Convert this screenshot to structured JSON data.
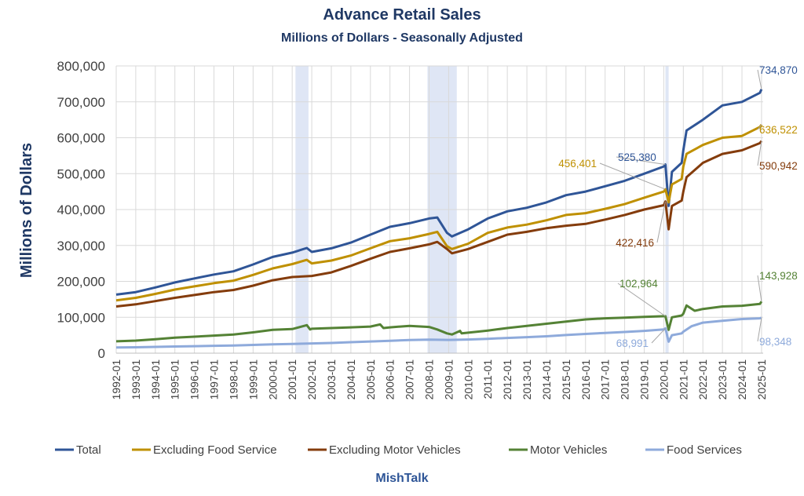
{
  "chart_data": {
    "type": "line",
    "title": "Advance Retail Sales",
    "subtitle": "Millions of Dollars - Seasonally Adjusted",
    "ylabel": "Millions of Dollars",
    "xlabel": "",
    "ylim": [
      0,
      800000
    ],
    "yticks": [
      "0",
      "100,000",
      "200,000",
      "300,000",
      "400,000",
      "500,000",
      "600,000",
      "700,000",
      "800,000"
    ],
    "x_ticks": [
      "1992-01",
      "1993-01",
      "1994-01",
      "1995-01",
      "1996-01",
      "1997-01",
      "1998-01",
      "1999-01",
      "2000-01",
      "2001-01",
      "2002-01",
      "2003-01",
      "2004-01",
      "2005-01",
      "2006-01",
      "2007-01",
      "2008-01",
      "2009-01",
      "2010-01",
      "2011-01",
      "2012-01",
      "2013-01",
      "2014-01",
      "2015-01",
      "2016-01",
      "2017-01",
      "2018-01",
      "2019-01",
      "2020-01",
      "2021-01",
      "2022-01",
      "2023-01",
      "2024-01",
      "2025-01"
    ],
    "grid": true,
    "legend_position": "bottom",
    "recessions": [
      {
        "start": "2001-03",
        "end": "2001-11"
      },
      {
        "start": "2007-12",
        "end": "2009-06"
      },
      {
        "start": "2020-02",
        "end": "2020-04"
      }
    ],
    "series": [
      {
        "name": "Total",
        "color": "#2f5597",
        "x": [
          "1992-01",
          "1993-01",
          "1994-01",
          "1995-01",
          "1996-01",
          "1997-01",
          "1998-01",
          "1999-01",
          "2000-01",
          "2001-01",
          "2001-10",
          "2002-01",
          "2003-01",
          "2004-01",
          "2005-01",
          "2006-01",
          "2007-01",
          "2008-01",
          "2008-06",
          "2008-12",
          "2009-03",
          "2010-01",
          "2011-01",
          "2012-01",
          "2013-01",
          "2014-01",
          "2015-01",
          "2016-01",
          "2017-01",
          "2018-01",
          "2019-01",
          "2020-01",
          "2020-02",
          "2020-04",
          "2020-06",
          "2020-12",
          "2021-01",
          "2021-03",
          "2022-01",
          "2023-01",
          "2024-01",
          "2024-12",
          "2025-01"
        ],
        "values": [
          163000,
          170000,
          183000,
          197000,
          208000,
          219000,
          228000,
          247000,
          268000,
          280000,
          293000,
          282000,
          292000,
          308000,
          330000,
          352000,
          362000,
          375000,
          378000,
          335000,
          325000,
          345000,
          375000,
          395000,
          405000,
          420000,
          440000,
          450000,
          465000,
          480000,
          500000,
          520000,
          525380,
          410000,
          505000,
          530000,
          565000,
          620000,
          650000,
          690000,
          700000,
          725000,
          734870
        ]
      },
      {
        "name": "Excluding Food Service",
        "color": "#bf9000",
        "x": [
          "1992-01",
          "1993-01",
          "1994-01",
          "1995-01",
          "1996-01",
          "1997-01",
          "1998-01",
          "1999-01",
          "2000-01",
          "2001-01",
          "2001-10",
          "2002-01",
          "2003-01",
          "2004-01",
          "2005-01",
          "2006-01",
          "2007-01",
          "2008-01",
          "2008-06",
          "2008-12",
          "2009-03",
          "2010-01",
          "2011-01",
          "2012-01",
          "2013-01",
          "2014-01",
          "2015-01",
          "2016-01",
          "2017-01",
          "2018-01",
          "2019-01",
          "2020-01",
          "2020-02",
          "2020-04",
          "2020-06",
          "2020-12",
          "2021-01",
          "2021-03",
          "2022-01",
          "2023-01",
          "2024-01",
          "2024-12",
          "2025-01"
        ],
        "values": [
          147000,
          154000,
          165000,
          177000,
          186000,
          195000,
          202000,
          218000,
          236000,
          248000,
          260000,
          250000,
          258000,
          272000,
          292000,
          312000,
          320000,
          332000,
          338000,
          298000,
          290000,
          305000,
          335000,
          350000,
          358000,
          370000,
          385000,
          390000,
          402000,
          415000,
          433000,
          450000,
          456401,
          420000,
          470000,
          485000,
          520000,
          555000,
          580000,
          600000,
          605000,
          630000,
          636522
        ]
      },
      {
        "name": "Excluding Motor Vehicles",
        "color": "#843c0c",
        "x": [
          "1992-01",
          "1993-01",
          "1994-01",
          "1995-01",
          "1996-01",
          "1997-01",
          "1998-01",
          "1999-01",
          "2000-01",
          "2001-01",
          "2002-01",
          "2003-01",
          "2004-01",
          "2005-01",
          "2006-01",
          "2007-01",
          "2008-01",
          "2008-06",
          "2008-12",
          "2009-03",
          "2010-01",
          "2011-01",
          "2012-01",
          "2013-01",
          "2014-01",
          "2015-01",
          "2016-01",
          "2017-01",
          "2018-01",
          "2019-01",
          "2020-01",
          "2020-02",
          "2020-04",
          "2020-06",
          "2020-12",
          "2021-01",
          "2021-03",
          "2022-01",
          "2023-01",
          "2024-01",
          "2024-12",
          "2025-01"
        ],
        "values": [
          130000,
          136000,
          145000,
          154000,
          162000,
          170000,
          176000,
          188000,
          203000,
          212000,
          215000,
          225000,
          243000,
          263000,
          282000,
          292000,
          303000,
          310000,
          290000,
          278000,
          290000,
          310000,
          330000,
          338000,
          348000,
          355000,
          360000,
          372000,
          385000,
          400000,
          412000,
          422416,
          345000,
          410000,
          425000,
          450000,
          490000,
          530000,
          555000,
          565000,
          585000,
          590942
        ]
      },
      {
        "name": "Motor Vehicles",
        "color": "#548235",
        "x": [
          "1992-01",
          "1993-01",
          "1994-01",
          "1995-01",
          "1996-01",
          "1997-01",
          "1998-01",
          "1999-01",
          "2000-01",
          "2001-01",
          "2001-10",
          "2001-12",
          "2002-01",
          "2003-01",
          "2004-01",
          "2005-01",
          "2005-07",
          "2005-09",
          "2006-01",
          "2007-01",
          "2008-01",
          "2008-06",
          "2008-12",
          "2009-03",
          "2009-08",
          "2009-09",
          "2010-01",
          "2011-01",
          "2012-01",
          "2013-01",
          "2014-01",
          "2015-01",
          "2016-01",
          "2017-01",
          "2018-01",
          "2019-01",
          "2020-01",
          "2020-02",
          "2020-04",
          "2020-06",
          "2020-12",
          "2021-01",
          "2021-03",
          "2021-08",
          "2022-01",
          "2023-01",
          "2024-01",
          "2024-12",
          "2025-01"
        ],
        "values": [
          33000,
          35000,
          39000,
          43000,
          46000,
          49000,
          52000,
          58000,
          65000,
          67000,
          78000,
          66000,
          68000,
          70000,
          72000,
          74000,
          80000,
          70000,
          72000,
          76000,
          73000,
          66000,
          55000,
          52000,
          62000,
          55000,
          57000,
          63000,
          70000,
          76000,
          82000,
          88000,
          94000,
          97000,
          99000,
          101000,
          103000,
          102964,
          65000,
          100000,
          105000,
          110000,
          133000,
          118000,
          123000,
          130000,
          132000,
          137000,
          143928
        ]
      },
      {
        "name": "Food Services",
        "color": "#8eaadb",
        "x": [
          "1992-01",
          "1993-01",
          "1994-01",
          "1995-01",
          "1996-01",
          "1997-01",
          "1998-01",
          "1999-01",
          "2000-01",
          "2001-01",
          "2002-01",
          "2003-01",
          "2004-01",
          "2005-01",
          "2006-01",
          "2007-01",
          "2008-01",
          "2009-01",
          "2010-01",
          "2011-01",
          "2012-01",
          "2013-01",
          "2014-01",
          "2015-01",
          "2016-01",
          "2017-01",
          "2018-01",
          "2019-01",
          "2020-01",
          "2020-02",
          "2020-04",
          "2020-06",
          "2020-12",
          "2021-01",
          "2021-06",
          "2022-01",
          "2023-01",
          "2024-01",
          "2024-12",
          "2025-01"
        ],
        "values": [
          16000,
          16500,
          17500,
          18500,
          19500,
          20500,
          21500,
          23000,
          24500,
          25500,
          27000,
          28500,
          30500,
          32500,
          34500,
          36500,
          37500,
          37000,
          38000,
          40000,
          42500,
          44500,
          47000,
          50500,
          53500,
          56500,
          59000,
          62000,
          66000,
          68991,
          32000,
          50000,
          55000,
          60000,
          75000,
          85000,
          90000,
          95000,
          97000,
          98348
        ]
      }
    ],
    "annotations": [
      {
        "text": "734,870",
        "series": "Total",
        "x": "2025-01",
        "value": 734870
      },
      {
        "text": "636,522",
        "series": "Excluding Food Service",
        "x": "2025-01",
        "value": 636522
      },
      {
        "text": "590,942",
        "series": "Excluding Motor Vehicles",
        "x": "2025-01",
        "value": 590942
      },
      {
        "text": "143,928",
        "series": "Motor Vehicles",
        "x": "2025-01",
        "value": 143928
      },
      {
        "text": "98,348",
        "series": "Food Services",
        "x": "2025-01",
        "value": 98348
      },
      {
        "text": "525,380",
        "series": "Total",
        "x": "2020-02",
        "value": 525380
      },
      {
        "text": "456,401",
        "series": "Excluding Food Service",
        "x": "2020-02",
        "value": 456401
      },
      {
        "text": "422,416",
        "series": "Excluding Motor Vehicles",
        "x": "2020-02",
        "value": 422416
      },
      {
        "text": "102,964",
        "series": "Motor Vehicles",
        "x": "2020-02",
        "value": 102964
      },
      {
        "text": "68,991",
        "series": "Food Services",
        "x": "2020-02",
        "value": 68991
      }
    ]
  },
  "footer": "MishTalk"
}
